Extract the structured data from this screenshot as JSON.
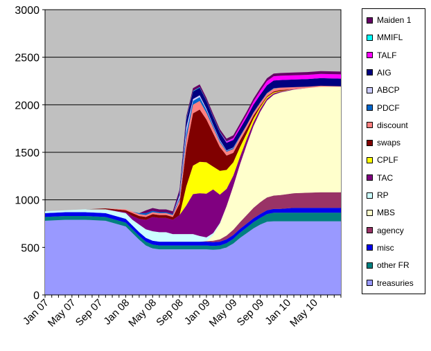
{
  "chart_data": {
    "type": "area",
    "title": "",
    "xlabel": "",
    "ylabel": "",
    "ylim": [
      0,
      3000
    ],
    "yticks": [
      0,
      500,
      1000,
      1500,
      2000,
      2500,
      3000
    ],
    "xlim": [
      "2007-01",
      "2010-09"
    ],
    "xtick_labels": [
      "Jan 07",
      "May 07",
      "Sep 07",
      "Jan 08",
      "May 08",
      "Sep 08",
      "Jan 09",
      "May 09",
      "Sep 09",
      "Jan 10",
      "May 10"
    ],
    "grid": true,
    "stacked": true,
    "legend_position": "right",
    "plot_background": "#c0c0c0",
    "x": [
      "2007-01",
      "2007-04",
      "2007-07",
      "2007-10",
      "2008-01",
      "2008-02",
      "2008-03",
      "2008-04",
      "2008-05",
      "2008-06",
      "2008-07",
      "2008-08",
      "2008-09",
      "2008-10",
      "2008-11",
      "2008-12",
      "2009-01",
      "2009-02",
      "2009-03",
      "2009-04",
      "2009-05",
      "2009-06",
      "2009-07",
      "2009-08",
      "2009-09",
      "2009-10",
      "2009-11",
      "2009-12",
      "2010-02",
      "2010-04",
      "2010-06",
      "2010-09"
    ],
    "series": [
      {
        "name": "treasuries",
        "color": "#9999ff",
        "values": [
          780,
          790,
          790,
          780,
          720,
          650,
          580,
          520,
          490,
          480,
          480,
          480,
          480,
          480,
          480,
          480,
          480,
          475,
          480,
          500,
          540,
          600,
          650,
          700,
          740,
          770,
          775,
          775,
          775,
          775,
          775,
          775
        ]
      },
      {
        "name": "other FR",
        "color": "#008080",
        "values": [
          40,
          40,
          40,
          40,
          40,
          40,
          40,
          40,
          40,
          40,
          40,
          40,
          40,
          40,
          40,
          40,
          40,
          40,
          40,
          45,
          50,
          55,
          60,
          65,
          70,
          80,
          90,
          90,
          90,
          90,
          90,
          90
        ]
      },
      {
        "name": "misc",
        "color": "#0000ee",
        "values": [
          40,
          40,
          40,
          40,
          40,
          40,
          40,
          40,
          40,
          40,
          40,
          40,
          40,
          40,
          40,
          40,
          40,
          40,
          40,
          40,
          40,
          40,
          40,
          40,
          40,
          40,
          40,
          40,
          50,
          50,
          50,
          50
        ]
      },
      {
        "name": "agency",
        "color": "#993366",
        "values": [
          0,
          0,
          0,
          0,
          0,
          0,
          0,
          0,
          0,
          0,
          0,
          0,
          0,
          0,
          0,
          0,
          5,
          15,
          25,
          40,
          55,
          70,
          90,
          110,
          125,
          135,
          140,
          145,
          155,
          160,
          165,
          165
        ]
      },
      {
        "name": "MBS",
        "color": "#ffffcc",
        "values": [
          0,
          0,
          0,
          0,
          0,
          0,
          0,
          0,
          0,
          0,
          0,
          0,
          0,
          0,
          0,
          0,
          0,
          60,
          160,
          310,
          460,
          610,
          740,
          860,
          950,
          1020,
          1060,
          1080,
          1090,
          1100,
          1110,
          1110
        ]
      },
      {
        "name": "RP",
        "color": "#ccffff",
        "values": [
          20,
          20,
          30,
          40,
          60,
          60,
          80,
          90,
          100,
          100,
          100,
          80,
          80,
          80,
          80,
          60,
          40,
          20,
          10,
          0,
          0,
          0,
          0,
          0,
          0,
          0,
          0,
          0,
          0,
          0,
          0,
          0
        ]
      },
      {
        "name": "TAC",
        "color": "#800080",
        "values": [
          0,
          0,
          0,
          0,
          10,
          40,
          60,
          100,
          150,
          150,
          150,
          150,
          200,
          300,
          420,
          450,
          460,
          460,
          300,
          180,
          110,
          80,
          60,
          40,
          30,
          20,
          15,
          10,
          5,
          0,
          0,
          0
        ]
      },
      {
        "name": "CPLF",
        "color": "#ffff00",
        "values": [
          0,
          0,
          0,
          0,
          0,
          0,
          0,
          0,
          0,
          0,
          0,
          0,
          0,
          200,
          300,
          330,
          330,
          240,
          250,
          200,
          140,
          100,
          60,
          40,
          20,
          15,
          10,
          5,
          0,
          0,
          0,
          0
        ]
      },
      {
        "name": "swaps",
        "color": "#800000",
        "values": [
          0,
          0,
          0,
          10,
          20,
          30,
          30,
          30,
          30,
          30,
          30,
          30,
          120,
          400,
          550,
          550,
          450,
          350,
          250,
          150,
          100,
          70,
          50,
          30,
          15,
          10,
          10,
          10,
          0,
          0,
          0,
          0
        ]
      },
      {
        "name": "discount",
        "color": "#ff8080",
        "values": [
          0,
          0,
          0,
          0,
          10,
          15,
          20,
          20,
          20,
          20,
          20,
          20,
          40,
          100,
          90,
          90,
          70,
          60,
          50,
          40,
          40,
          35,
          35,
          30,
          30,
          30,
          30,
          25,
          20,
          15,
          10,
          5
        ]
      },
      {
        "name": "PDCF",
        "color": "#0066cc",
        "values": [
          0,
          0,
          0,
          0,
          0,
          0,
          10,
          20,
          15,
          10,
          10,
          10,
          20,
          60,
          40,
          40,
          30,
          20,
          15,
          10,
          10,
          5,
          5,
          5,
          5,
          5,
          5,
          0,
          0,
          0,
          0,
          0
        ]
      },
      {
        "name": "ABCP",
        "color": "#ccccff",
        "values": [
          0,
          0,
          0,
          0,
          0,
          0,
          0,
          0,
          0,
          0,
          0,
          0,
          30,
          60,
          20,
          20,
          15,
          10,
          10,
          5,
          5,
          5,
          0,
          0,
          0,
          0,
          0,
          0,
          0,
          0,
          0,
          0
        ]
      },
      {
        "name": "AIG",
        "color": "#000080",
        "values": [
          0,
          0,
          0,
          0,
          0,
          0,
          0,
          0,
          0,
          0,
          0,
          0,
          30,
          80,
          80,
          80,
          80,
          80,
          80,
          80,
          80,
          80,
          80,
          80,
          80,
          80,
          80,
          80,
          80,
          80,
          80,
          80
        ]
      },
      {
        "name": "TALF",
        "color": "#ff00ff",
        "values": [
          0,
          0,
          0,
          0,
          0,
          0,
          0,
          0,
          0,
          0,
          0,
          0,
          0,
          0,
          0,
          0,
          0,
          0,
          0,
          10,
          20,
          25,
          30,
          35,
          40,
          45,
          45,
          45,
          45,
          45,
          45,
          45
        ]
      },
      {
        "name": "MMIFL",
        "color": "#00ffff",
        "values": [
          0,
          0,
          0,
          0,
          0,
          0,
          0,
          0,
          0,
          0,
          0,
          0,
          0,
          10,
          5,
          5,
          5,
          5,
          5,
          5,
          0,
          0,
          0,
          0,
          0,
          0,
          0,
          0,
          0,
          0,
          0,
          0
        ]
      },
      {
        "name": "Maiden 1",
        "color": "#660066",
        "values": [
          0,
          0,
          0,
          0,
          0,
          0,
          0,
          29,
          29,
          29,
          29,
          29,
          29,
          29,
          29,
          29,
          29,
          29,
          29,
          29,
          29,
          29,
          29,
          29,
          29,
          29,
          29,
          29,
          29,
          29,
          29,
          29
        ]
      }
    ],
    "legend_order": [
      "Maiden 1",
      "MMIFL",
      "TALF",
      "AIG",
      "ABCP",
      "PDCF",
      "discount",
      "swaps",
      "CPLF",
      "TAC",
      "RP",
      "MBS",
      "agency",
      "misc",
      "other FR",
      "treasuries"
    ]
  }
}
